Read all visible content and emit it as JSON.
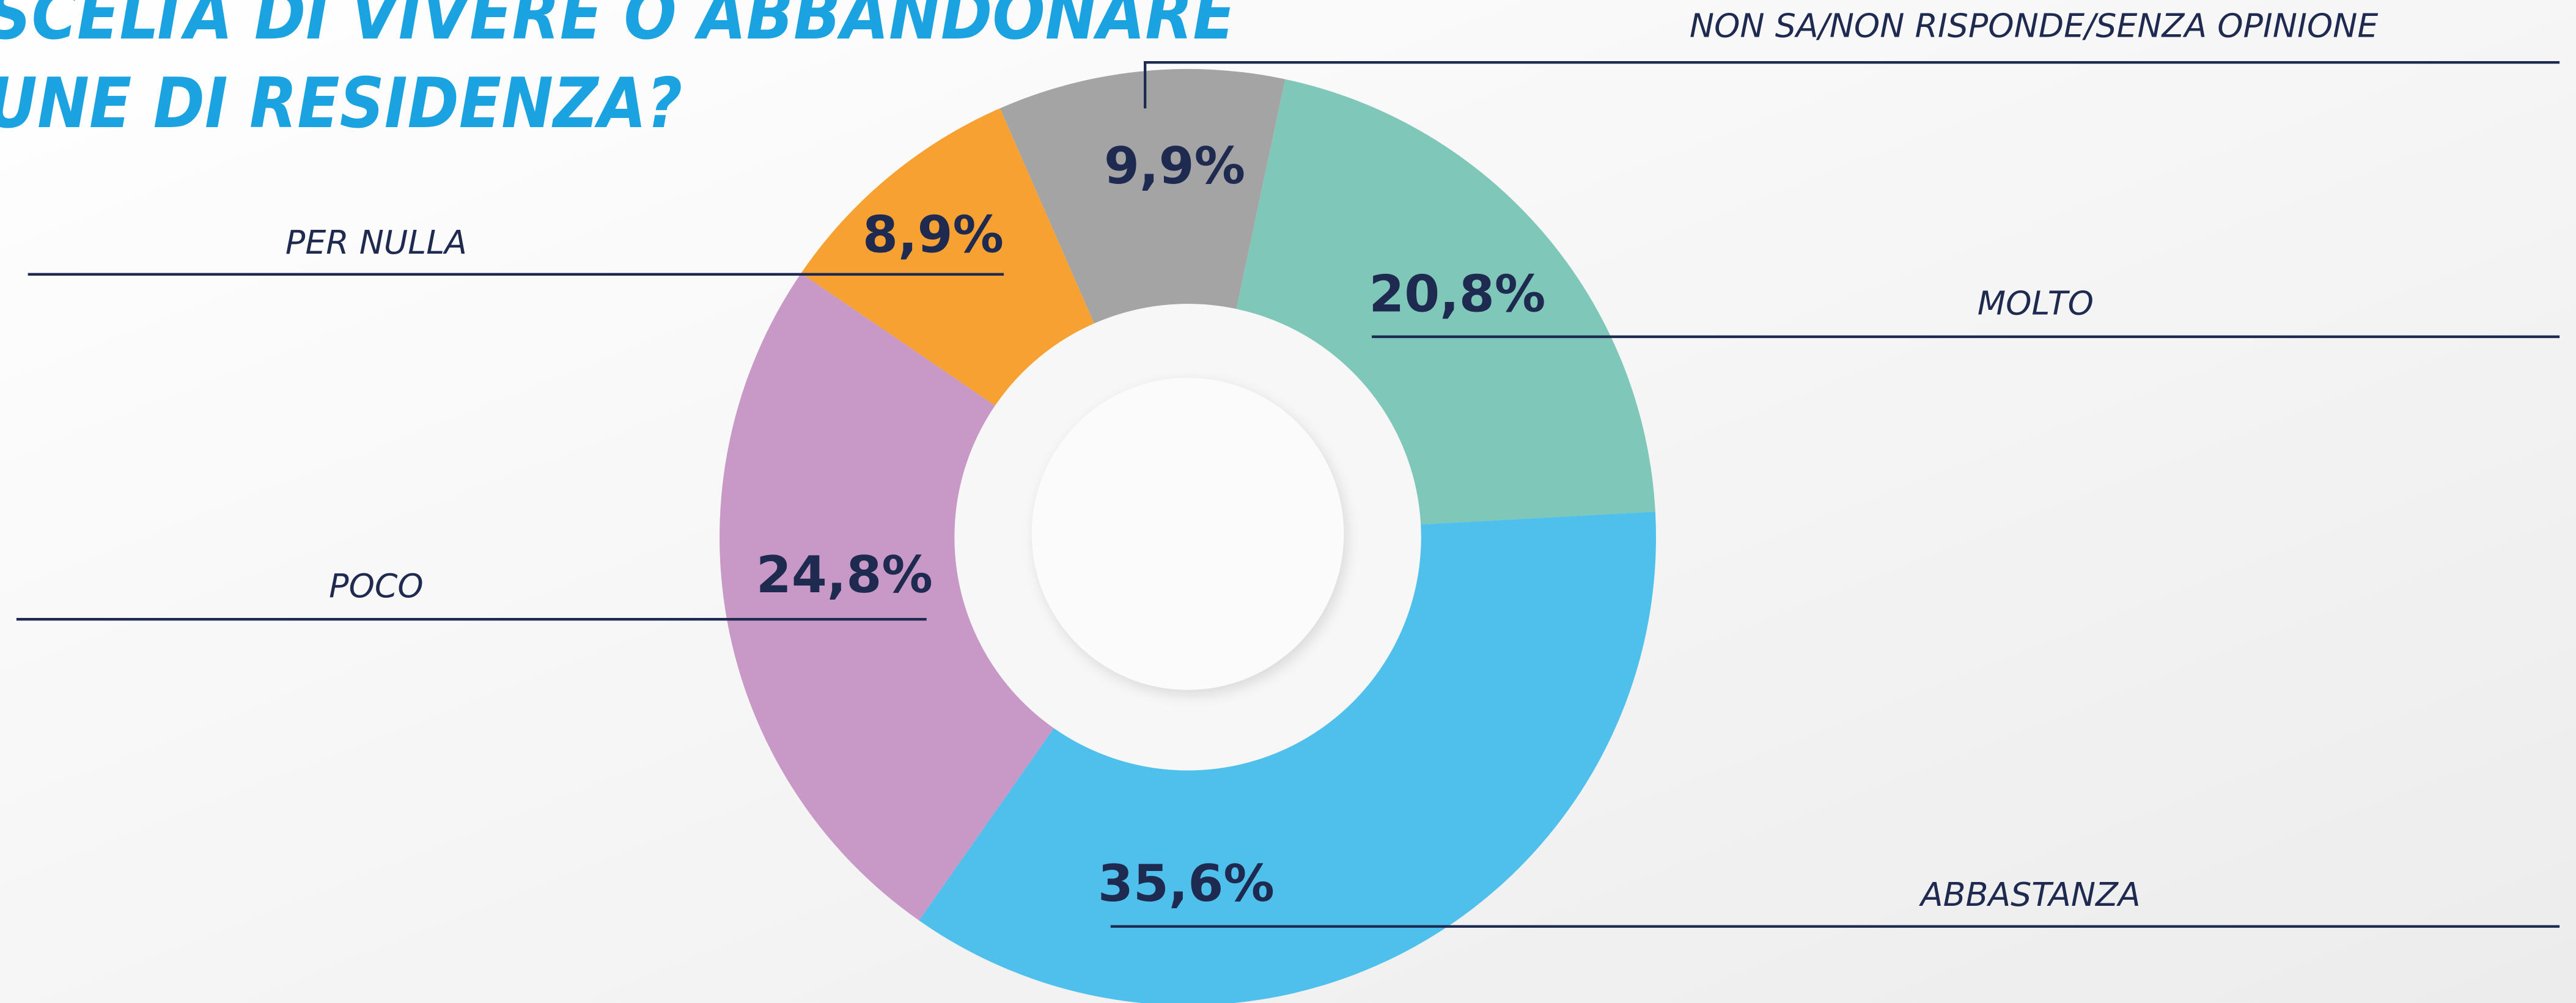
{
  "chart_data": {
    "type": "pie",
    "title_lines": [
      "SCELTA DI VIVERE O ABBANDONARE",
      "UNE DI RESIDENZA?"
    ],
    "categories": [
      "MOLTO",
      "ABBASTANZA",
      "POCO",
      "PER NULLA",
      "NON SA/NON RISPONDE/SENZA OPINIONE"
    ],
    "values": [
      20.8,
      35.6,
      24.8,
      8.9,
      9.9
    ],
    "value_labels": [
      "20,8%",
      "35,6%",
      "24,8%",
      "8,9%",
      "9,9%"
    ],
    "colors": [
      "#7fc7b8",
      "#4fc0eb",
      "#c898c6",
      "#f7a132",
      "#a4a4a4"
    ]
  }
}
